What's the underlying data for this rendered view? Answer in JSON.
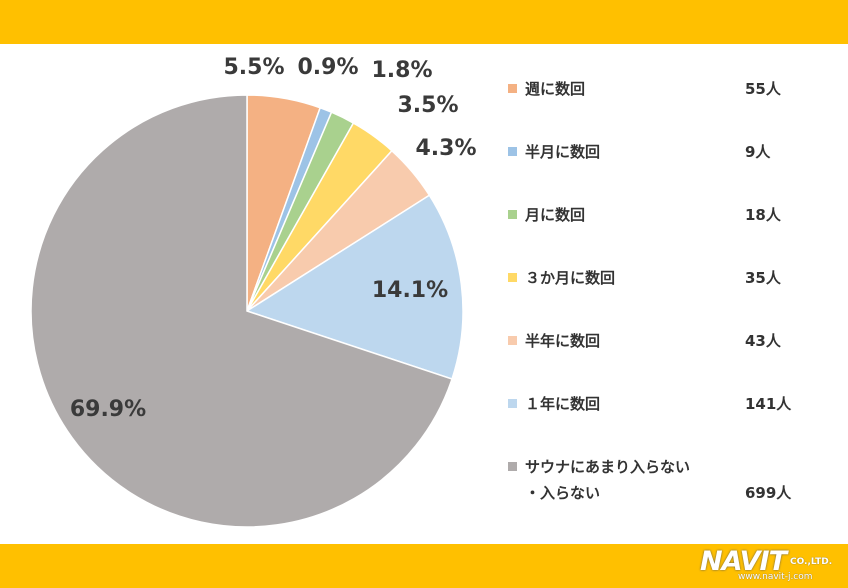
{
  "chart_data": {
    "type": "pie",
    "slices": [
      {
        "label": "週に数回",
        "label_line2": "",
        "count": "55人",
        "percent": 5.5,
        "percent_label": "5.5%",
        "color": "#F4B183"
      },
      {
        "label": "半月に数回",
        "label_line2": "",
        "count": "9人",
        "percent": 0.9,
        "percent_label": "0.9%",
        "color": "#9DC3E6"
      },
      {
        "label": "月に数回",
        "label_line2": "",
        "count": "18人",
        "percent": 1.8,
        "percent_label": "1.8%",
        "color": "#A9D18E"
      },
      {
        "label": "３か月に数回",
        "label_line2": "",
        "count": "35人",
        "percent": 3.5,
        "percent_label": "3.5%",
        "color": "#FFD966"
      },
      {
        "label": "半年に数回",
        "label_line2": "",
        "count": "43人",
        "percent": 4.3,
        "percent_label": "4.3%",
        "color": "#F8CBAD"
      },
      {
        "label": "１年に数回",
        "label_line2": "",
        "count": "141人",
        "percent": 14.1,
        "percent_label": "14.1%",
        "color": "#BDD7EE"
      },
      {
        "label": "サウナにあまり入らない",
        "label_line2": "・入らない",
        "count": "699人",
        "percent": 69.9,
        "percent_label": "69.9%",
        "color": "#AFABAB"
      }
    ],
    "legend_position": "right"
  },
  "header_color": "#FFC000",
  "logo": {
    "name": "NAVIT",
    "company": "CO.,LTD.",
    "url": "www.navit-j.com"
  }
}
